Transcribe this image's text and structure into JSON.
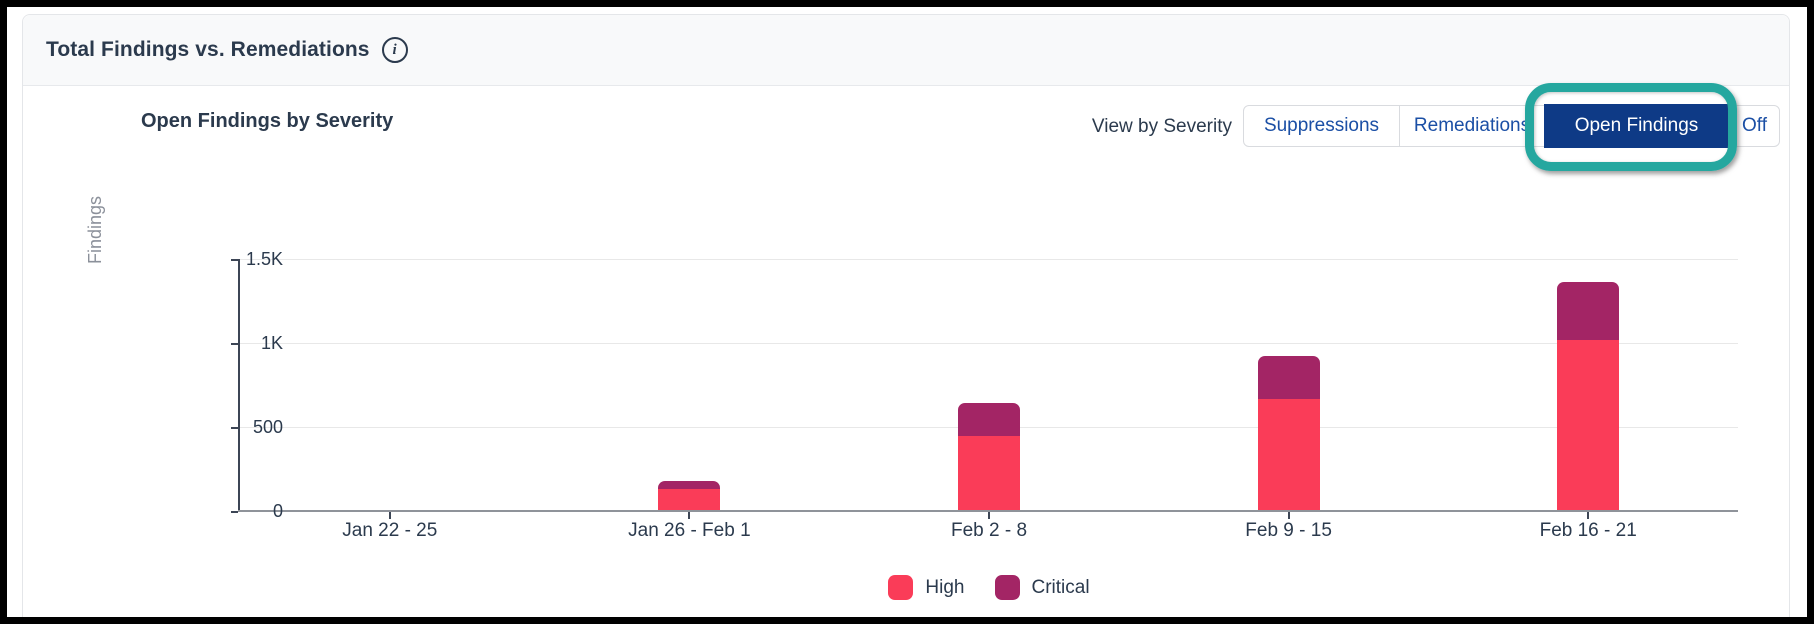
{
  "card": {
    "title": "Total Findings vs. Remediations",
    "info_icon": "i"
  },
  "chart_header": {
    "subtitle": "Open Findings by Severity"
  },
  "controls": {
    "label": "View by Severity",
    "buttons": [
      {
        "label": "Suppressions",
        "selected": false
      },
      {
        "label": "Remediations",
        "selected": false
      },
      {
        "label": "Open Findings",
        "selected": true
      },
      {
        "label": "Off",
        "selected": false
      }
    ]
  },
  "annotation": {
    "shape": "teal-rounded-ring",
    "color": "#25a79f",
    "target": "Open Findings"
  },
  "colors": {
    "high": "#fa3c58",
    "critical": "#a32565",
    "selected_button_bg": "#0e3a86",
    "button_text": "#1b4fa5",
    "header_bg": "#f8f9fa",
    "gridline": "#e8e8e8"
  },
  "chart_data": {
    "type": "bar",
    "stacked": true,
    "title": "Open Findings by Severity",
    "ylabel": "Findings",
    "xlabel": "",
    "ylim": [
      0,
      1500
    ],
    "grid": true,
    "legend_position": "bottom",
    "categories": [
      "Jan 22 - 25",
      "Jan 26 - Feb 1",
      "Feb 2 - 8",
      "Feb 9 - 15",
      "Feb 16 - 21"
    ],
    "series": [
      {
        "name": "High",
        "color": "#fa3c58",
        "values": [
          0,
          125,
          440,
          660,
          1010
        ]
      },
      {
        "name": "Critical",
        "color": "#a32565",
        "values": [
          0,
          50,
          195,
          255,
          350
        ]
      }
    ],
    "yticks": [
      {
        "value": 0,
        "label": "0"
      },
      {
        "value": 500,
        "label": "500"
      },
      {
        "value": 1000,
        "label": "1K"
      },
      {
        "value": 1500,
        "label": "1.5K"
      }
    ]
  }
}
